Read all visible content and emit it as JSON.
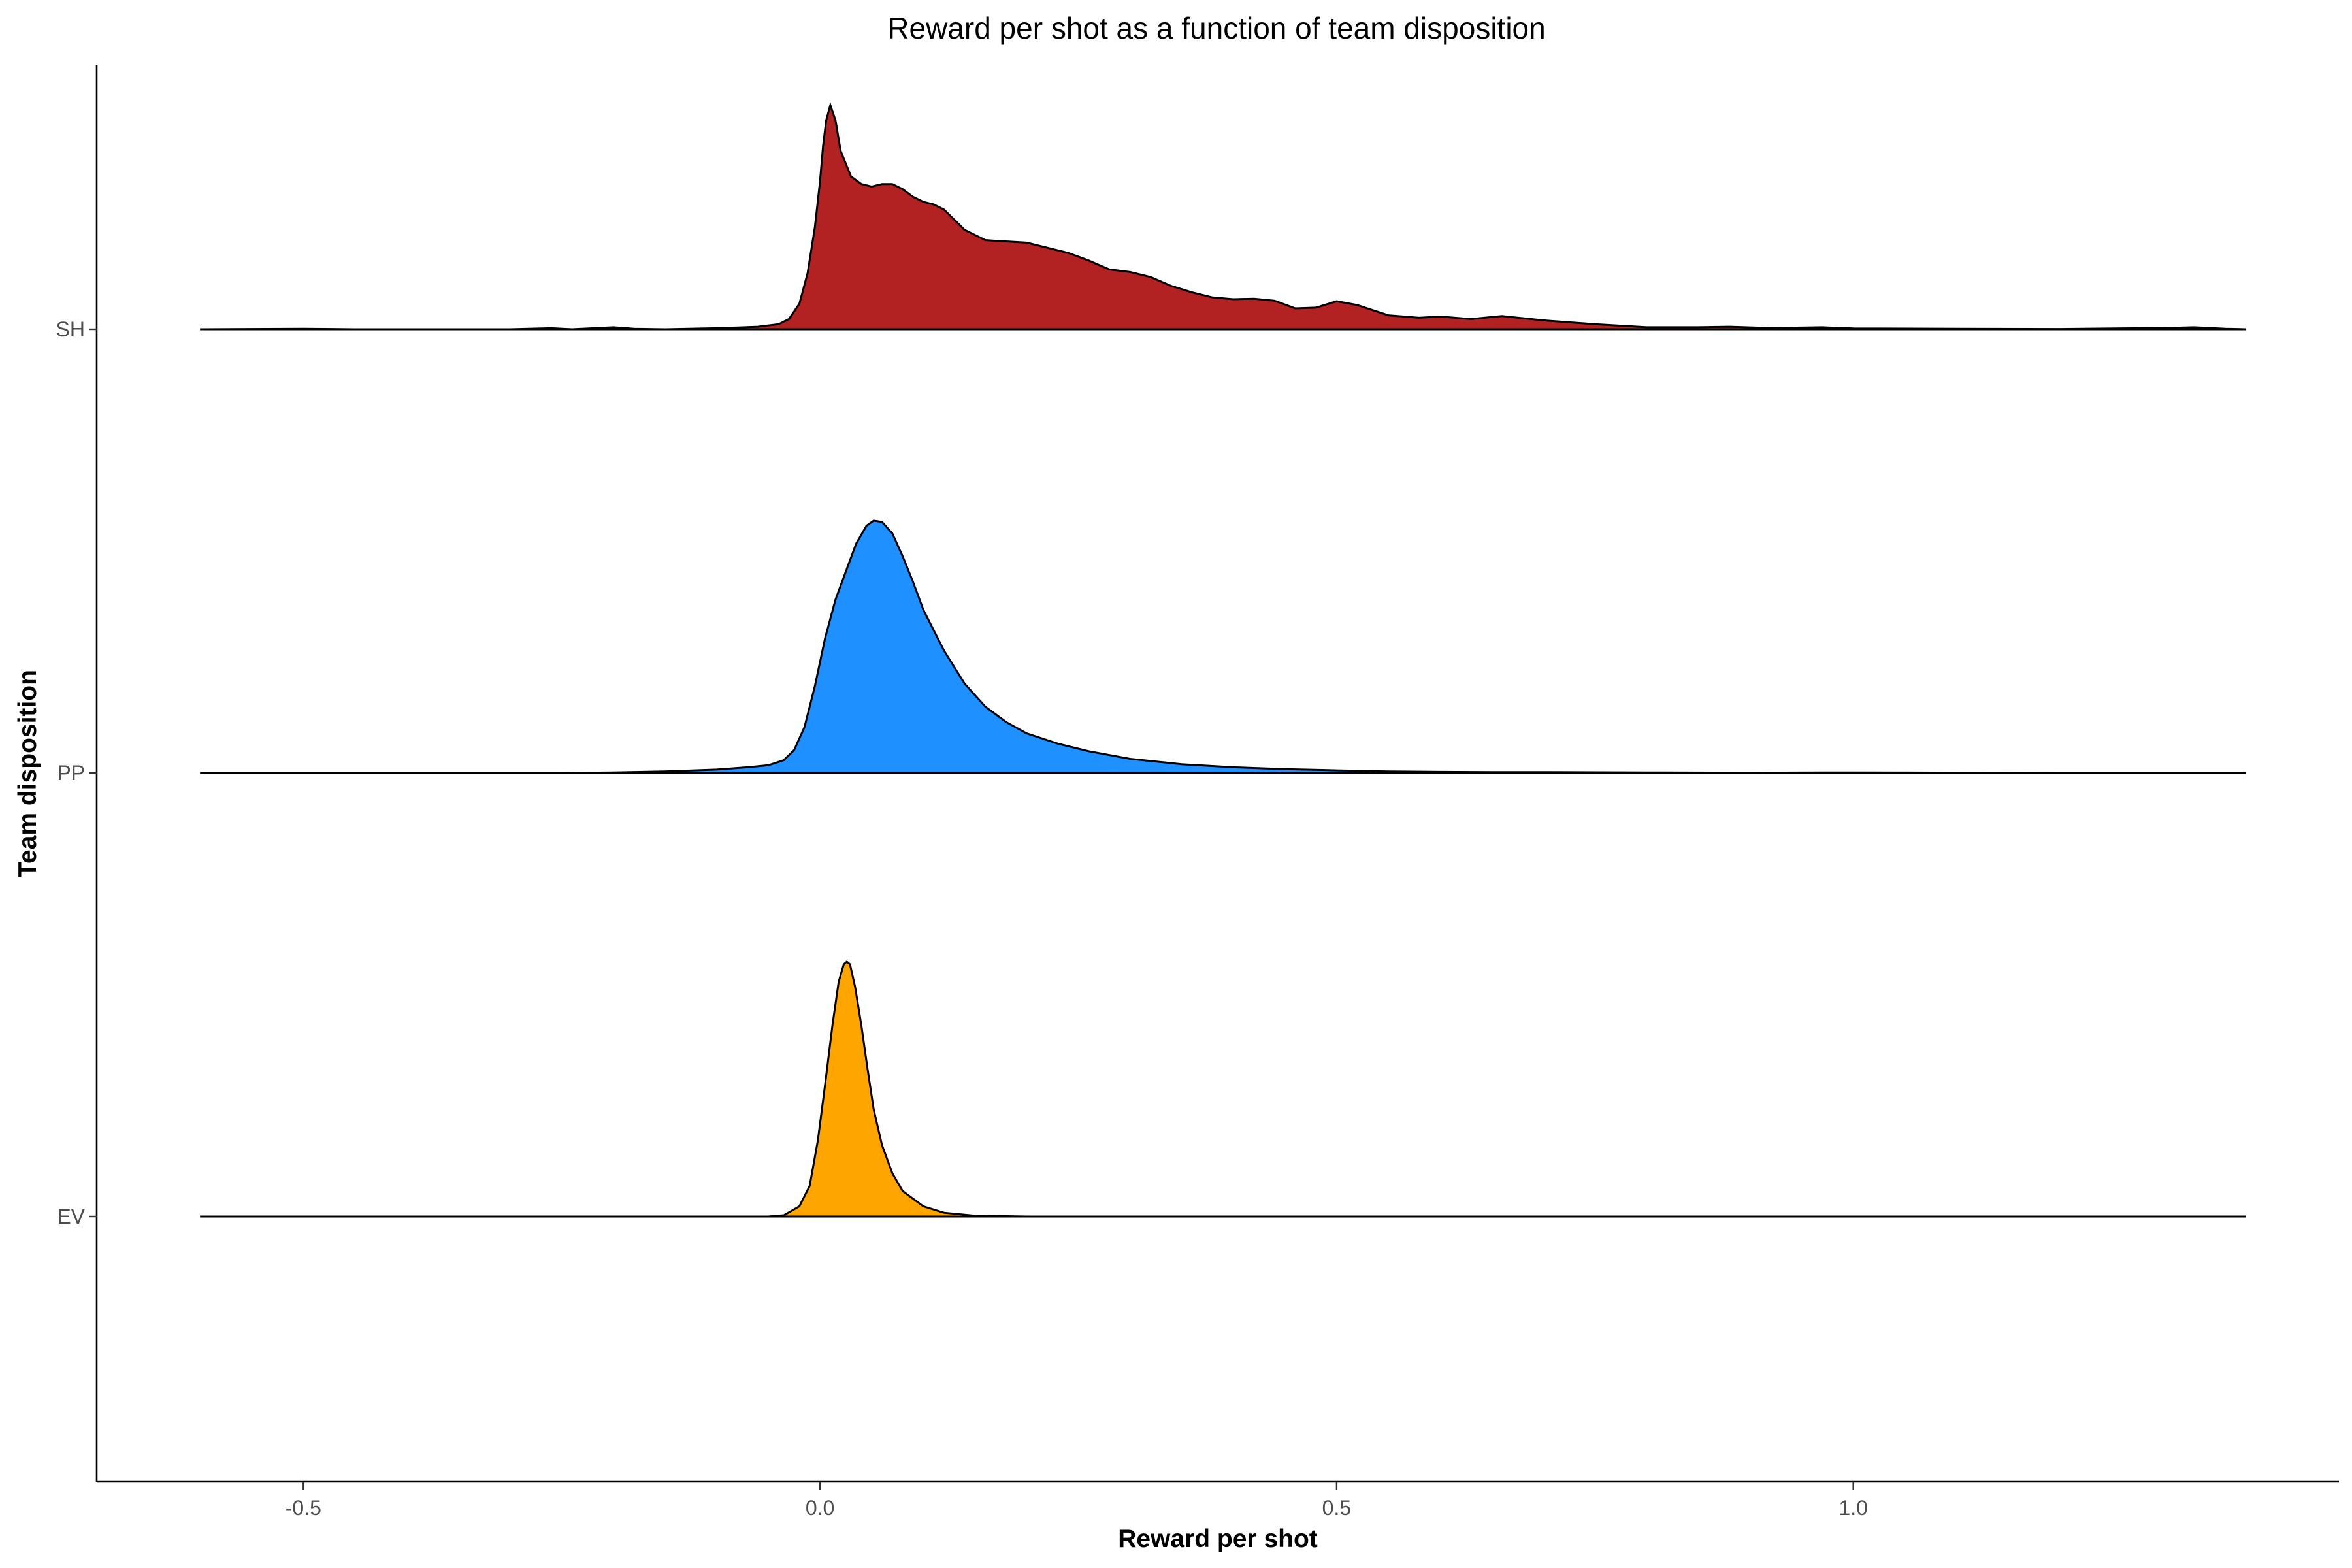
{
  "chart_data": {
    "type": "area",
    "subtype": "ridgeline-density",
    "title": "Reward per shot as a function of team disposition",
    "xlabel": "Reward per shot",
    "ylabel": "Team disposition",
    "xlim": [
      -0.7,
      1.47
    ],
    "x_ticks": [
      -0.5,
      0.0,
      0.5,
      1.0
    ],
    "x_tick_labels": [
      "-0.5",
      "0.0",
      "0.5",
      "1.0"
    ],
    "y_categories": [
      "EV",
      "PP",
      "SH"
    ],
    "grid": false,
    "legend": "none",
    "density_range": [
      -0.6,
      1.38
    ],
    "series": [
      {
        "name": "EV",
        "color": "#FFA500",
        "points": [
          [
            -0.6,
            0
          ],
          [
            -0.05,
            0
          ],
          [
            -0.035,
            0.005
          ],
          [
            -0.02,
            0.04
          ],
          [
            -0.01,
            0.12
          ],
          [
            -0.002,
            0.3
          ],
          [
            0.005,
            0.52
          ],
          [
            0.012,
            0.75
          ],
          [
            0.018,
            0.92
          ],
          [
            0.023,
            0.99
          ],
          [
            0.026,
            1.0
          ],
          [
            0.029,
            0.99
          ],
          [
            0.034,
            0.9
          ],
          [
            0.04,
            0.75
          ],
          [
            0.046,
            0.58
          ],
          [
            0.052,
            0.42
          ],
          [
            0.06,
            0.28
          ],
          [
            0.07,
            0.17
          ],
          [
            0.08,
            0.1
          ],
          [
            0.1,
            0.04
          ],
          [
            0.12,
            0.015
          ],
          [
            0.15,
            0.003
          ],
          [
            0.2,
            0
          ],
          [
            1.38,
            0
          ]
        ]
      },
      {
        "name": "PP",
        "color": "#1E90FF",
        "points": [
          [
            -0.6,
            0
          ],
          [
            -0.25,
            0
          ],
          [
            -0.2,
            0.002
          ],
          [
            -0.15,
            0.006
          ],
          [
            -0.1,
            0.013
          ],
          [
            -0.07,
            0.022
          ],
          [
            -0.05,
            0.03
          ],
          [
            -0.035,
            0.05
          ],
          [
            -0.025,
            0.09
          ],
          [
            -0.015,
            0.18
          ],
          [
            -0.005,
            0.34
          ],
          [
            0.005,
            0.53
          ],
          [
            0.015,
            0.68
          ],
          [
            0.025,
            0.79
          ],
          [
            0.035,
            0.9
          ],
          [
            0.045,
            0.97
          ],
          [
            0.052,
            0.99
          ],
          [
            0.06,
            0.985
          ],
          [
            0.07,
            0.94
          ],
          [
            0.08,
            0.85
          ],
          [
            0.09,
            0.75
          ],
          [
            0.1,
            0.64
          ],
          [
            0.12,
            0.48
          ],
          [
            0.14,
            0.35
          ],
          [
            0.16,
            0.26
          ],
          [
            0.18,
            0.2
          ],
          [
            0.2,
            0.155
          ],
          [
            0.23,
            0.115
          ],
          [
            0.26,
            0.085
          ],
          [
            0.3,
            0.055
          ],
          [
            0.35,
            0.034
          ],
          [
            0.4,
            0.022
          ],
          [
            0.45,
            0.015
          ],
          [
            0.5,
            0.01
          ],
          [
            0.55,
            0.006
          ],
          [
            0.6,
            0.004
          ],
          [
            0.65,
            0.003
          ],
          [
            0.7,
            0.003
          ],
          [
            0.8,
            0.002
          ],
          [
            0.9,
            0.001
          ],
          [
            1.0,
            0.002
          ],
          [
            1.1,
            0.001
          ],
          [
            1.2,
            0
          ],
          [
            1.38,
            0
          ]
        ]
      },
      {
        "name": "SH",
        "color": "#B22222",
        "points": [
          [
            -0.6,
            0
          ],
          [
            -0.5,
            0.002
          ],
          [
            -0.45,
            0
          ],
          [
            -0.3,
            0
          ],
          [
            -0.26,
            0.004
          ],
          [
            -0.24,
            0
          ],
          [
            -0.2,
            0.008
          ],
          [
            -0.18,
            0.002
          ],
          [
            -0.15,
            0
          ],
          [
            -0.1,
            0.004
          ],
          [
            -0.06,
            0.01
          ],
          [
            -0.04,
            0.02
          ],
          [
            -0.03,
            0.04
          ],
          [
            -0.02,
            0.1
          ],
          [
            -0.012,
            0.22
          ],
          [
            -0.005,
            0.4
          ],
          [
            0.0,
            0.58
          ],
          [
            0.003,
            0.72
          ],
          [
            0.006,
            0.82
          ],
          [
            0.01,
            0.88
          ],
          [
            0.015,
            0.82
          ],
          [
            0.02,
            0.7
          ],
          [
            0.03,
            0.6
          ],
          [
            0.04,
            0.57
          ],
          [
            0.05,
            0.56
          ],
          [
            0.06,
            0.57
          ],
          [
            0.07,
            0.57
          ],
          [
            0.08,
            0.55
          ],
          [
            0.09,
            0.52
          ],
          [
            0.1,
            0.5
          ],
          [
            0.11,
            0.49
          ],
          [
            0.12,
            0.47
          ],
          [
            0.13,
            0.43
          ],
          [
            0.14,
            0.39
          ],
          [
            0.16,
            0.35
          ],
          [
            0.18,
            0.345
          ],
          [
            0.2,
            0.34
          ],
          [
            0.22,
            0.32
          ],
          [
            0.24,
            0.3
          ],
          [
            0.26,
            0.27
          ],
          [
            0.28,
            0.235
          ],
          [
            0.3,
            0.225
          ],
          [
            0.32,
            0.205
          ],
          [
            0.34,
            0.17
          ],
          [
            0.36,
            0.145
          ],
          [
            0.38,
            0.125
          ],
          [
            0.4,
            0.118
          ],
          [
            0.42,
            0.12
          ],
          [
            0.44,
            0.112
          ],
          [
            0.46,
            0.082
          ],
          [
            0.48,
            0.085
          ],
          [
            0.5,
            0.11
          ],
          [
            0.52,
            0.095
          ],
          [
            0.55,
            0.055
          ],
          [
            0.58,
            0.045
          ],
          [
            0.6,
            0.05
          ],
          [
            0.63,
            0.04
          ],
          [
            0.66,
            0.052
          ],
          [
            0.7,
            0.035
          ],
          [
            0.75,
            0.02
          ],
          [
            0.8,
            0.008
          ],
          [
            0.85,
            0.008
          ],
          [
            0.88,
            0.01
          ],
          [
            0.92,
            0.005
          ],
          [
            0.97,
            0.008
          ],
          [
            1.0,
            0.003
          ],
          [
            1.1,
            0.002
          ],
          [
            1.2,
            0.001
          ],
          [
            1.3,
            0.005
          ],
          [
            1.33,
            0.008
          ],
          [
            1.36,
            0.002
          ],
          [
            1.38,
            0
          ]
        ]
      }
    ]
  }
}
